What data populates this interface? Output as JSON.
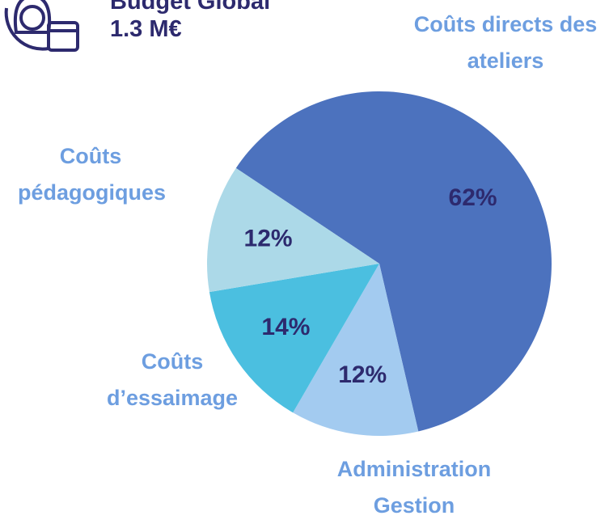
{
  "chart_data": {
    "type": "pie",
    "title": "Budget Global",
    "subtitle": "1.3 M€",
    "categories": [
      "Coûts directs des ateliers",
      "Administration Gestion",
      "Coûts d’essaimage",
      "Coûts pédagogiques"
    ],
    "values": [
      62,
      12,
      14,
      12
    ],
    "value_labels": [
      "62%",
      "12%",
      "14%",
      "12%"
    ],
    "colors": [
      "#4c72be",
      "#a3cbf0",
      "#4bbfe0",
      "#acd9e8"
    ]
  }
}
